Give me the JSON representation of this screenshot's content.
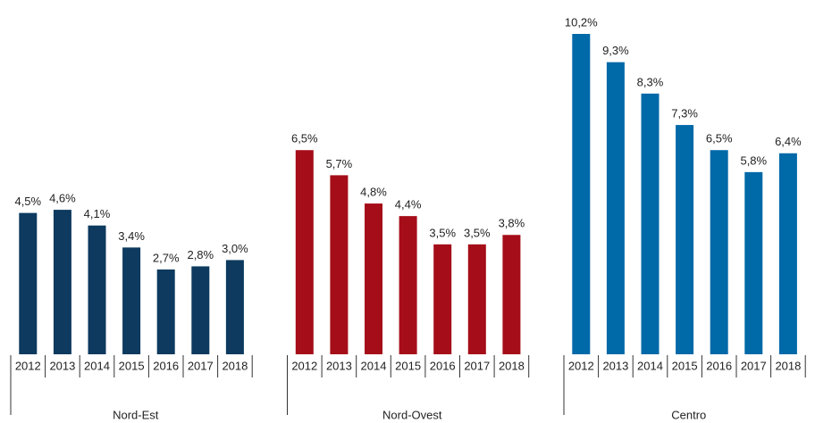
{
  "chart_data": {
    "type": "bar",
    "groups": [
      {
        "name": "Nord-Est",
        "color": "#0d3a5e",
        "categories": [
          "2012",
          "2013",
          "2014",
          "2015",
          "2016",
          "2017",
          "2018"
        ],
        "values": [
          4.5,
          4.6,
          4.1,
          3.4,
          2.7,
          2.8,
          3.0
        ],
        "value_labels": [
          "4,5%",
          "4,6%",
          "4,1%",
          "3,4%",
          "2,7%",
          "2,8%",
          "3,0%"
        ]
      },
      {
        "name": "Nord-Ovest",
        "color": "#a50d18",
        "categories": [
          "2012",
          "2013",
          "2014",
          "2015",
          "2016",
          "2017",
          "2018"
        ],
        "values": [
          6.5,
          5.7,
          4.8,
          4.4,
          3.5,
          3.5,
          3.8
        ],
        "value_labels": [
          "6,5%",
          "5,7%",
          "4,8%",
          "4,4%",
          "3,5%",
          "3,5%",
          "3,8%"
        ]
      },
      {
        "name": "Centro",
        "color": "#0069a8",
        "categories": [
          "2012",
          "2013",
          "2014",
          "2015",
          "2016",
          "2017",
          "2018"
        ],
        "values": [
          10.2,
          9.3,
          8.3,
          7.3,
          6.5,
          5.8,
          6.4
        ],
        "value_labels": [
          "10,2%",
          "9,3%",
          "8,3%",
          "7,3%",
          "6,5%",
          "5,8%",
          "6,4%"
        ]
      }
    ]
  }
}
